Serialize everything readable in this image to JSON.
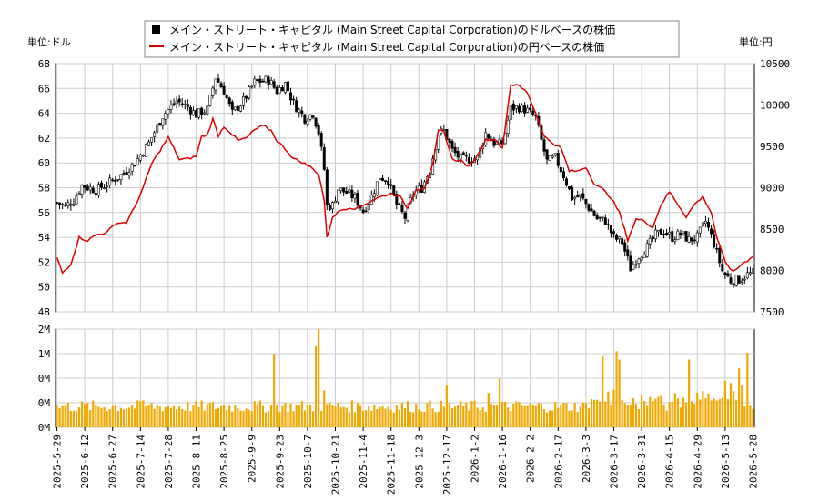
{
  "chart_data": {
    "type": "candlestick",
    "legend": {
      "placement": "top-center",
      "items": [
        {
          "label": "メイン・ストリート・キャピタル (Main Street Capital Corporation)のドルベースの株価",
          "color": "#000000",
          "marker": "square"
        },
        {
          "label": "メイン・ストリート・キャピタル (Main Street Capital Corporation)の円ベースの株価",
          "color": "#dd0000",
          "marker": "line"
        }
      ]
    },
    "left_axis": {
      "unit_label": "単位:ドル",
      "min": 48,
      "max": 68,
      "ticks": [
        48,
        50,
        52,
        54,
        56,
        58,
        60,
        62,
        64,
        66,
        68
      ]
    },
    "right_axis": {
      "unit_label": "単位:円",
      "min": 7500,
      "max": 10500,
      "ticks": [
        7500,
        8000,
        8500,
        9000,
        9500,
        10000,
        10500
      ]
    },
    "volume_axis": {
      "min": 0,
      "max": 2,
      "ticks": [
        {
          "v": 0,
          "label": "0M"
        },
        {
          "v": 0.5,
          "label": "0M"
        },
        {
          "v": 1,
          "label": "0M"
        },
        {
          "v": 1.5,
          "label": "1M"
        },
        {
          "v": 2,
          "label": "2M"
        }
      ]
    },
    "x_labels": [
      "2025-5-29",
      "2025-6-12",
      "2025-6-27",
      "2025-7-14",
      "2025-7-28",
      "2025-8-11",
      "2025-8-25",
      "2025-9-9",
      "2025-9-23",
      "2025-10-7",
      "2025-10-21",
      "2025-11-4",
      "2025-11-18",
      "2025-12-3",
      "2025-12-17",
      "2026-1-2",
      "2026-1-16",
      "2026-2-2",
      "2026-2-17",
      "2026-3-3",
      "2026-3-17",
      "2026-3-31",
      "2026-4-15",
      "2026-4-29",
      "2026-5-13",
      "2026-5-28"
    ],
    "grid": true,
    "colors": {
      "candle_up": "#ffffff",
      "candle_down": "#000000",
      "yen_line": "#dd0000",
      "volume": "#f0a800",
      "grid": "#cccccc"
    },
    "usd_close_anchors": [
      [
        0,
        56.8
      ],
      [
        3,
        56.5
      ],
      [
        6,
        57.0
      ],
      [
        9,
        58.2
      ],
      [
        14,
        57.8
      ],
      [
        18,
        58.3
      ],
      [
        23,
        59.0
      ],
      [
        28,
        60.0
      ],
      [
        33,
        61.6
      ],
      [
        38,
        63.8
      ],
      [
        43,
        65.0
      ],
      [
        47,
        64.5
      ],
      [
        50,
        63.9
      ],
      [
        54,
        64.3
      ],
      [
        57,
        66.9
      ],
      [
        60,
        65.8
      ],
      [
        63,
        64.0
      ],
      [
        67,
        65.0
      ],
      [
        71,
        66.5
      ],
      [
        76,
        66.7
      ],
      [
        79,
        65.8
      ],
      [
        82,
        66.4
      ],
      [
        85,
        64.8
      ],
      [
        89,
        63.6
      ],
      [
        92,
        64.0
      ],
      [
        94,
        62.5
      ],
      [
        96,
        59.5
      ],
      [
        97,
        56.5
      ],
      [
        99,
        56.6
      ],
      [
        101,
        57.9
      ],
      [
        104,
        57.6
      ],
      [
        107,
        57.2
      ],
      [
        110,
        56.1
      ],
      [
        113,
        57.3
      ],
      [
        116,
        58.9
      ],
      [
        119,
        58.6
      ],
      [
        122,
        56.6
      ],
      [
        125,
        55.6
      ],
      [
        128,
        57.6
      ],
      [
        131,
        58.0
      ],
      [
        134,
        59.5
      ],
      [
        137,
        62.4
      ],
      [
        139,
        62.6
      ],
      [
        142,
        61.0
      ],
      [
        145,
        60.3
      ],
      [
        148,
        60.3
      ],
      [
        151,
        60.4
      ],
      [
        154,
        62.4
      ],
      [
        157,
        61.6
      ],
      [
        160,
        61.5
      ],
      [
        163,
        64.4
      ],
      [
        166,
        64.5
      ],
      [
        169,
        64.2
      ],
      [
        172,
        63.6
      ],
      [
        174,
        61.8
      ],
      [
        176,
        60.1
      ],
      [
        179,
        60.4
      ],
      [
        182,
        59.0
      ],
      [
        185,
        57.2
      ],
      [
        188,
        57.3
      ],
      [
        191,
        56.4
      ],
      [
        194,
        55.5
      ],
      [
        197,
        55.3
      ],
      [
        200,
        54.0
      ],
      [
        203,
        53.6
      ],
      [
        206,
        51.5
      ],
      [
        209,
        52.5
      ],
      [
        212,
        53.2
      ],
      [
        215,
        54.2
      ],
      [
        218,
        54.5
      ],
      [
        221,
        54.0
      ],
      [
        224,
        54.3
      ],
      [
        227,
        53.8
      ],
      [
        230,
        54.0
      ],
      [
        233,
        55.3
      ],
      [
        236,
        53.5
      ],
      [
        239,
        51.3
      ],
      [
        242,
        50.5
      ],
      [
        245,
        50.6
      ],
      [
        248,
        51.0
      ],
      [
        250,
        51.1
      ]
    ],
    "jpy_close_anchors": [
      [
        0,
        8150
      ],
      [
        2,
        7970
      ],
      [
        5,
        8080
      ],
      [
        8,
        8400
      ],
      [
        11,
        8360
      ],
      [
        14,
        8430
      ],
      [
        18,
        8460
      ],
      [
        21,
        8570
      ],
      [
        25,
        8580
      ],
      [
        28,
        8770
      ],
      [
        31,
        9000
      ],
      [
        34,
        9290
      ],
      [
        37,
        9450
      ],
      [
        40,
        9610
      ],
      [
        44,
        9340
      ],
      [
        47,
        9350
      ],
      [
        50,
        9380
      ],
      [
        52,
        9620
      ],
      [
        54,
        9640
      ],
      [
        56,
        9830
      ],
      [
        58,
        9630
      ],
      [
        60,
        9740
      ],
      [
        62,
        9680
      ],
      [
        65,
        9570
      ],
      [
        68,
        9600
      ],
      [
        71,
        9700
      ],
      [
        74,
        9750
      ],
      [
        77,
        9690
      ],
      [
        79,
        9570
      ],
      [
        82,
        9470
      ],
      [
        85,
        9350
      ],
      [
        88,
        9310
      ],
      [
        91,
        9250
      ],
      [
        94,
        9170
      ],
      [
        96,
        8850
      ],
      [
        97,
        8390
      ],
      [
        99,
        8650
      ],
      [
        102,
        8730
      ],
      [
        105,
        8760
      ],
      [
        108,
        8750
      ],
      [
        111,
        8810
      ],
      [
        114,
        8860
      ],
      [
        117,
        8900
      ],
      [
        120,
        8930
      ],
      [
        123,
        8900
      ],
      [
        126,
        8750
      ],
      [
        129,
        8980
      ],
      [
        132,
        9000
      ],
      [
        135,
        9270
      ],
      [
        137,
        9690
      ],
      [
        139,
        9680
      ],
      [
        142,
        9340
      ],
      [
        145,
        9330
      ],
      [
        148,
        9250
      ],
      [
        151,
        9390
      ],
      [
        154,
        9580
      ],
      [
        157,
        9590
      ],
      [
        160,
        9480
      ],
      [
        163,
        10250
      ],
      [
        166,
        10230
      ],
      [
        169,
        10150
      ],
      [
        172,
        9900
      ],
      [
        175,
        9620
      ],
      [
        178,
        9540
      ],
      [
        181,
        9480
      ],
      [
        184,
        9200
      ],
      [
        187,
        9200
      ],
      [
        190,
        9250
      ],
      [
        193,
        9050
      ],
      [
        196,
        8980
      ],
      [
        199,
        8880
      ],
      [
        202,
        8700
      ],
      [
        205,
        8370
      ],
      [
        208,
        8620
      ],
      [
        211,
        8600
      ],
      [
        214,
        8520
      ],
      [
        217,
        8800
      ],
      [
        220,
        8950
      ],
      [
        223,
        8800
      ],
      [
        226,
        8650
      ],
      [
        229,
        8800
      ],
      [
        232,
        8890
      ],
      [
        235,
        8700
      ],
      [
        237,
        8400
      ],
      [
        240,
        8100
      ],
      [
        243,
        7980
      ],
      [
        246,
        8080
      ],
      [
        248,
        8120
      ],
      [
        250,
        8180
      ]
    ],
    "volume_spikes": [
      [
        31,
        0.55
      ],
      [
        78,
        1.5
      ],
      [
        93,
        1.65
      ],
      [
        94,
        2.0
      ],
      [
        96,
        0.75
      ],
      [
        140,
        0.85
      ],
      [
        155,
        0.7
      ],
      [
        159,
        1.0
      ],
      [
        196,
        1.45
      ],
      [
        201,
        1.55
      ],
      [
        202,
        1.38
      ],
      [
        227,
        1.38
      ],
      [
        240,
        0.95
      ],
      [
        242,
        0.9
      ],
      [
        245,
        1.2
      ],
      [
        246,
        0.85
      ],
      [
        248,
        1.52
      ]
    ]
  }
}
